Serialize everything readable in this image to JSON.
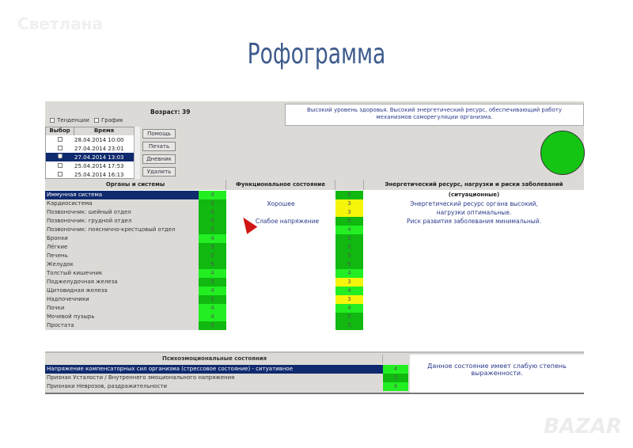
{
  "watermark": "Светлана",
  "page_title": "Рофограмма",
  "logo": "BAZAR",
  "app": {
    "age": "Возраст: 39",
    "checkboxes": [
      "Тенденции",
      "График"
    ],
    "list_headers": [
      "Выбор",
      "Время"
    ],
    "sessions": [
      {
        "time": "28.04.2014 10:00",
        "checked": false
      },
      {
        "time": "27.04.2014 23:01",
        "checked": false
      },
      {
        "time": "27.04.2014 13:03",
        "checked": true,
        "selected": true
      },
      {
        "time": "25.04.2014 17:53",
        "checked": false
      },
      {
        "time": "25.04.2014 16:13",
        "checked": false
      }
    ],
    "buttons": [
      "Помощь",
      "Печать",
      "Дневник",
      "Удалить"
    ],
    "summary": "Высокий уровень здоровья. Высокий энергетический ресурс, обеспечивающий работу механизмов саморегуляции организма.",
    "status_color": "#14c514",
    "headers": {
      "organs": "Органы и системы",
      "functional": "Функциональное состояние",
      "energy": "Энергетический ресурс, нагрузки и риски заболеваний (ситуационные)"
    },
    "organs": [
      {
        "name": "Иммунная система",
        "f": "4",
        "e": "5"
      },
      {
        "name": "Кардиосистема",
        "f": "5",
        "e": "3"
      },
      {
        "name": "Позвоночник: шейный отдел",
        "f": "5",
        "e": "3"
      },
      {
        "name": "Позвоночник: грудной отдел",
        "f": "5",
        "e": "5"
      },
      {
        "name": "Позвоночник: пояснично-крестцовый отдел",
        "f": "5",
        "e": "4"
      },
      {
        "name": "Бронхи",
        "f": "4",
        "e": "5"
      },
      {
        "name": "Лёгкие",
        "f": "5",
        "e": "5"
      },
      {
        "name": "Печень",
        "f": "5",
        "e": "5"
      },
      {
        "name": "Желудок",
        "f": "5",
        "e": "5"
      },
      {
        "name": "Толстый кишечник",
        "f": "4",
        "e": "4"
      },
      {
        "name": "Поджелудочная железа",
        "f": "5",
        "e": "3"
      },
      {
        "name": "Щитовидная железа",
        "f": "4",
        "e": "4"
      },
      {
        "name": "Надпочечники",
        "f": "5",
        "e": "3"
      },
      {
        "name": "Почки",
        "f": "4",
        "e": "4"
      },
      {
        "name": "Мочевой пузырь",
        "f": "4",
        "e": "5"
      },
      {
        "name": "Простата",
        "f": "5",
        "e": "5"
      }
    ],
    "functional_text": [
      "Хорошее",
      "Слабое напряжение"
    ],
    "energy_text": [
      "Энергетический ресурс органа высокий,",
      "нагрузки оптимальные.",
      "Риск развития заболевания минимальный."
    ],
    "psycho_header": "Психоэмоциональные состояния",
    "psycho": [
      {
        "name": "Напряжение компенсаторных сил организма (стрессовое состояние) - ситуативное",
        "v": "4"
      },
      {
        "name": "Признак Усталости / Внутреннего эмоционального напряжения",
        "v": "5"
      },
      {
        "name": "Признаки Неврозов, раздражительности",
        "v": "4"
      }
    ],
    "psycho_text": "Данное состояние имеет слабую степень выраженности.",
    "colors": {
      "3": "#f5f50a",
      "4": "#22ee22",
      "5": "#10b810"
    }
  }
}
